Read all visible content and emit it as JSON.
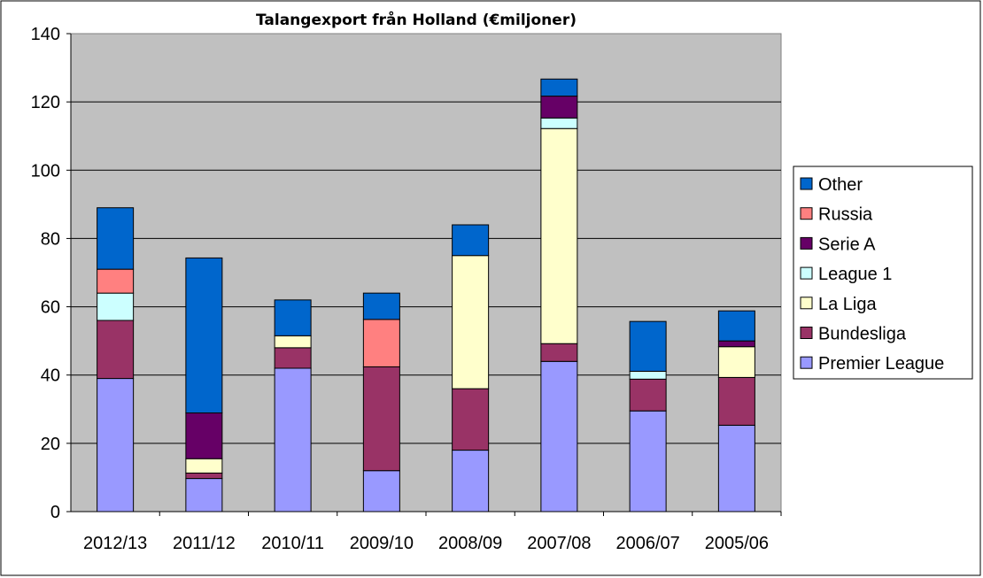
{
  "chart_data": {
    "type": "bar",
    "stacked": true,
    "title": "Talangexport från Holland (€miljoner)",
    "xlabel": "",
    "ylabel": "",
    "ylim": [
      0,
      140
    ],
    "yticks": [
      0,
      20,
      40,
      60,
      80,
      100,
      120,
      140
    ],
    "grid": true,
    "legend_position": "right",
    "categories": [
      "2012/13",
      "2011/12",
      "2010/11",
      "2009/10",
      "2008/09",
      "2007/08",
      "2006/07",
      "2005/06"
    ],
    "series": [
      {
        "name": "Premier League",
        "color": "#9999FF",
        "values": [
          39,
          9.7,
          42,
          12,
          18,
          44,
          29.5,
          25.3
        ]
      },
      {
        "name": "Bundesliga",
        "color": "#993366",
        "values": [
          17,
          1.6,
          6,
          30.4,
          18,
          5.2,
          9.3,
          14
        ]
      },
      {
        "name": "La Liga",
        "color": "#FFFFCC",
        "values": [
          0,
          4.2,
          3.5,
          0,
          39,
          63,
          0,
          9
        ]
      },
      {
        "name": "League 1",
        "color": "#CCFFFF",
        "values": [
          8,
          0,
          0,
          0,
          0,
          3.1,
          2.3,
          0
        ]
      },
      {
        "name": "Serie A",
        "color": "#660066",
        "values": [
          0,
          13.4,
          0,
          0,
          0,
          6.4,
          0,
          1.7
        ]
      },
      {
        "name": "Russia",
        "color": "#FF8080",
        "values": [
          7,
          0,
          0,
          13.9,
          0,
          0,
          0,
          0
        ]
      },
      {
        "name": "Other",
        "color": "#0066CC",
        "values": [
          18,
          45.4,
          10.5,
          7.7,
          9,
          5,
          14.6,
          8.8
        ]
      }
    ]
  }
}
